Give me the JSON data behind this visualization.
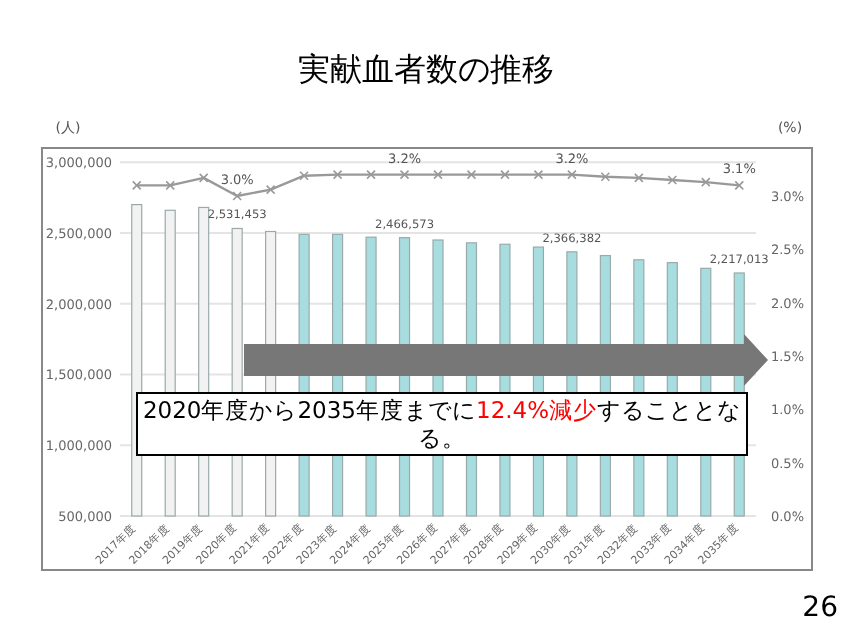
{
  "chart_data": {
    "type": "bar",
    "title": "実献血者数の推移",
    "ylabel": "(人)",
    "y2label": "(%)",
    "categories": [
      "2017年度",
      "2018年度",
      "2019年度",
      "2020年度",
      "2021年度",
      "2022年度",
      "2023年度",
      "2024年度",
      "2025年度",
      "2026年度",
      "2027年度",
      "2028年度",
      "2029年度",
      "2030年度",
      "2031年度",
      "2032年度",
      "2033年度",
      "2034年度",
      "2035年度"
    ],
    "series": [
      {
        "colors": [
          "#f2f2f2",
          "#f2f2f2",
          "#f2f2f2",
          "#f2f2f2",
          "#f2f2f2",
          "#a8dde0",
          "#a8dde0",
          "#a8dde0",
          "#a8dde0",
          "#a8dde0",
          "#a8dde0",
          "#a8dde0",
          "#a8dde0",
          "#a8dde0",
          "#a8dde0",
          "#a8dde0",
          "#a8dde0",
          "#a8dde0",
          "#a8dde0"
        ],
        "values": [
          2700000,
          2660000,
          2680000,
          2531453,
          2510000,
          2490000,
          2490000,
          2470000,
          2466573,
          2450000,
          2430000,
          2420000,
          2400000,
          2366382,
          2340000,
          2310000,
          2290000,
          2250000,
          2217013
        ],
        "value_labels": [
          null,
          null,
          null,
          "2,531,453",
          null,
          null,
          null,
          null,
          "2,466,573",
          null,
          null,
          null,
          null,
          "2,366,382",
          null,
          null,
          null,
          null,
          "2,217,013"
        ]
      },
      {
        "type": "line",
        "axis": "y2",
        "color": "#999999",
        "marker": "cross",
        "values": [
          3.1,
          3.1,
          3.17,
          3.0,
          3.06,
          3.19,
          3.2,
          3.2,
          3.2,
          3.2,
          3.2,
          3.2,
          3.2,
          3.2,
          3.18,
          3.17,
          3.15,
          3.13,
          3.1
        ],
        "value_labels": [
          null,
          null,
          null,
          "3.0%",
          null,
          null,
          null,
          null,
          "3.2%",
          null,
          null,
          null,
          null,
          "3.2%",
          null,
          null,
          null,
          null,
          "3.1%"
        ]
      }
    ],
    "ylim": [
      500000,
      3100000
    ],
    "yticks": [
      {
        "value": 500000,
        "label": "500,000"
      },
      {
        "value": 1000000,
        "label": "1,000,000"
      },
      {
        "value": 1500000,
        "label": "1,500,000"
      },
      {
        "value": 2000000,
        "label": "2,000,000"
      },
      {
        "value": 2500000,
        "label": "2,500,000"
      },
      {
        "value": 3000000,
        "label": "3,000,000"
      }
    ],
    "y2lim": [
      0,
      3.45
    ],
    "y2ticks": [
      {
        "value": 0,
        "label": "0.0%"
      },
      {
        "value": 0.5,
        "label": "0.5%"
      },
      {
        "value": 1,
        "label": "1.0%"
      },
      {
        "value": 1.5,
        "label": "1.5%"
      },
      {
        "value": 2,
        "label": "2.0%"
      },
      {
        "value": 2.5,
        "label": "2.5%"
      },
      {
        "value": 3,
        "label": "3.0%"
      }
    ],
    "grid": "y",
    "annotations": [
      "2020年度から2035年度までに12.4%減少することとなる。",
      "26"
    ]
  }
}
